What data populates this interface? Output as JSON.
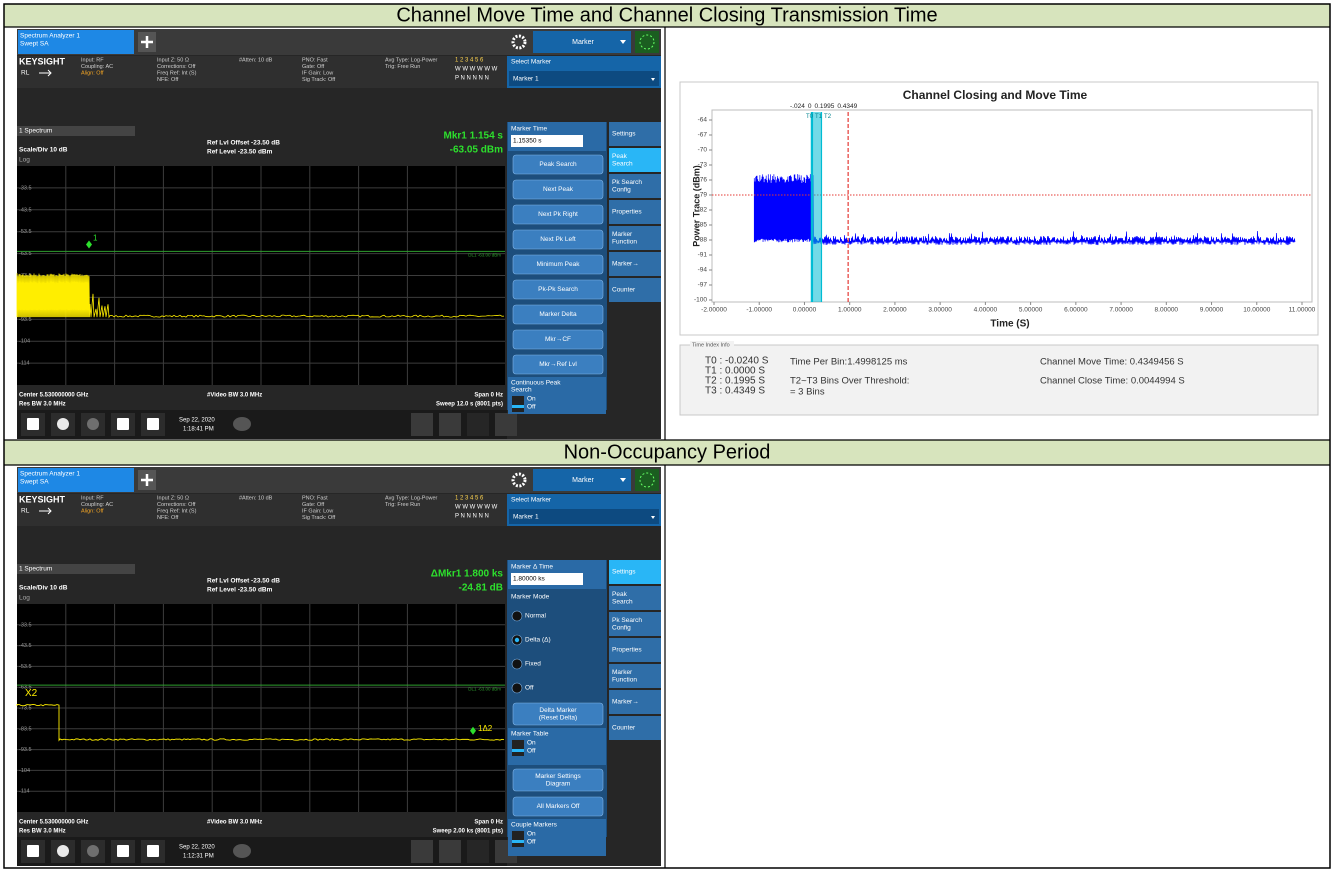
{
  "rows": [
    {
      "header": "Channel Move Time and Channel Closing Transmission Time"
    },
    {
      "header": "Non-Occupancy Period"
    }
  ],
  "screens": [
    {
      "tab": [
        "Spectrum Analyzer 1",
        "Swept SA"
      ],
      "mode": "Marker",
      "brand": "KEYSIGHT",
      "rl": "RL",
      "info": [
        [
          "Input: RF",
          "Coupling: AC",
          "Align: Off"
        ],
        [
          "Input Z: 50 Ω",
          "Corrections: Off",
          "Freq Ref: Int (S)",
          "NFE: Off"
        ],
        [
          "#Atten: 10 dB"
        ],
        [
          "PNO: Fast",
          "Gate: Off",
          "IF Gain: Low",
          "Sig Track: Off"
        ],
        [
          "Avg Type: Log-Power",
          "Trig: Free Run"
        ]
      ],
      "traces": [
        "1 2 3 4 5 6",
        "W W W W W W",
        "P N N N N N"
      ],
      "select_marker": [
        "Select Marker",
        "Marker 1"
      ],
      "window": "1 Spectrum",
      "scale": "Scale/Div 10 dB",
      "log": "Log",
      "ref": [
        "Ref Lvl Offset -23.50 dB",
        "Ref Level -23.50 dBm"
      ],
      "readout": [
        "Mkr1 1.154 s",
        "-63.05 dBm"
      ],
      "y_labels": [
        "-33.5",
        "-43.5",
        "-53.5",
        "-63.5",
        "-73.5",
        "-83.5",
        "-93.5",
        "-104",
        "-114"
      ],
      "dl": "DL1 -63.00 dBm",
      "marker_tags": [
        "1"
      ],
      "bottom": [
        "Center 5.530000000 GHz",
        "Res BW 3.0 MHz",
        "#Video BW 3.0 MHz",
        "Span 0 Hz",
        "Sweep 12.0 s (8001 pts)"
      ],
      "clock": [
        "Sep 22, 2020",
        "1:18:41 PM"
      ],
      "panel": [
        {
          "title": "Marker Time",
          "value": "1.15350 s"
        },
        {
          "button": [
            "Peak Search"
          ]
        },
        {
          "button": [
            "Next Peak"
          ]
        },
        {
          "button": [
            "Next Pk Right"
          ]
        },
        {
          "button": [
            "Next Pk Left"
          ]
        },
        {
          "button": [
            "Minimum Peak"
          ]
        },
        {
          "button": [
            "Pk-Pk Search"
          ]
        },
        {
          "button": [
            "Marker Delta"
          ]
        },
        {
          "button": [
            "Mkr→CF"
          ]
        },
        {
          "button": [
            "Mkr→Ref Lvl"
          ]
        },
        {
          "toggle_title": [
            "Continuous Peak",
            "Search"
          ],
          "toggle": [
            "On",
            "Off"
          ]
        }
      ],
      "tabs": [
        [
          "Settings"
        ],
        [
          "Peak",
          "Search"
        ],
        [
          "Pk Search",
          "Config"
        ],
        [
          "Properties"
        ],
        [
          "Marker",
          "Function"
        ],
        [
          "Marker→"
        ],
        [
          "Counter"
        ]
      ],
      "active_tab": 1
    },
    {
      "tab": [
        "Spectrum Analyzer 1",
        "Swept SA"
      ],
      "mode": "Marker",
      "brand": "KEYSIGHT",
      "rl": "RL",
      "info": [
        [
          "Input: RF",
          "Coupling: AC",
          "Align: Off"
        ],
        [
          "Input Z: 50 Ω",
          "Corrections: Off",
          "Freq Ref: Int (S)",
          "NFE: Off"
        ],
        [
          "#Atten: 10 dB"
        ],
        [
          "PNO: Fast",
          "Gate: Off",
          "IF Gain: Low",
          "Sig Track: Off"
        ],
        [
          "Avg Type: Log-Power",
          "Trig: Free Run"
        ]
      ],
      "traces": [
        "1 2 3 4 5 6",
        "W W W W W W",
        "P N N N N N"
      ],
      "select_marker": [
        "Select Marker",
        "Marker 1"
      ],
      "window": "1 Spectrum",
      "scale": "Scale/Div 10 dB",
      "log": "Log",
      "ref": [
        "Ref Lvl Offset -23.50 dB",
        "Ref Level -23.50 dBm"
      ],
      "readout": [
        "ΔMkr1 1.800 ks",
        "-24.81 dB"
      ],
      "y_labels": [
        "-33.5",
        "-43.5",
        "-53.5",
        "-63.5",
        "-73.5",
        "-83.5",
        "-93.5",
        "-104",
        "-114"
      ],
      "dl": "DL1 -63.00 dBm",
      "marker_tags": [
        "X2",
        "1Δ2"
      ],
      "bottom": [
        "Center 5.530000000 GHz",
        "Res BW 3.0 MHz",
        "#Video BW 3.0 MHz",
        "Span 0 Hz",
        "Sweep 2.00 ks (8001 pts)"
      ],
      "clock": [
        "Sep 22, 2020",
        "1:12:31 PM"
      ],
      "panel": [
        {
          "title": "Marker Δ Time",
          "value": "1.80000 ks"
        },
        {
          "header": "Marker Mode"
        },
        {
          "radio": "Normal",
          "selected": false
        },
        {
          "radio": "Delta (Δ)",
          "selected": true
        },
        {
          "radio": "Fixed",
          "selected": false
        },
        {
          "radio": "Off",
          "selected": false
        },
        {
          "button": [
            "Delta Marker",
            "(Reset Delta)"
          ]
        },
        {
          "toggle_title": [
            "Marker Table"
          ],
          "toggle": [
            "On",
            "Off"
          ]
        },
        {
          "button": [
            "Marker Settings",
            "Diagram"
          ]
        },
        {
          "button": [
            "All Markers Off"
          ]
        },
        {
          "toggle_title": [
            "Couple Markers"
          ],
          "toggle": [
            "On",
            "Off"
          ]
        }
      ],
      "tabs": [
        [
          "Settings"
        ],
        [
          "Peak",
          "Search"
        ],
        [
          "Pk Search",
          "Config"
        ],
        [
          "Properties"
        ],
        [
          "Marker",
          "Function"
        ],
        [
          "Marker→"
        ],
        [
          "Counter"
        ]
      ],
      "active_tab": 0
    }
  ],
  "closing_chart": {
    "type": "line",
    "title": "Channel Closing and Move Time",
    "x_label": "Time (S)",
    "y_label": "Power Trace (dBm)",
    "xlim": [
      -2,
      11
    ],
    "xticks": [
      {
        "value": -2,
        "label": "-2.00000"
      },
      {
        "value": -1,
        "label": "-1.00000"
      },
      {
        "value": 0,
        "label": "0.00000"
      },
      {
        "value": 1,
        "label": "1.00000"
      },
      {
        "value": 2,
        "label": "2.00000"
      },
      {
        "value": 3,
        "label": "3.00000"
      },
      {
        "value": 4,
        "label": "4.00000"
      },
      {
        "value": 5,
        "label": "5.00000"
      },
      {
        "value": 6,
        "label": "6.00000"
      },
      {
        "value": 7,
        "label": "7.00000"
      },
      {
        "value": 8,
        "label": "8.00000"
      },
      {
        "value": 9,
        "label": "9.00000"
      },
      {
        "value": 10,
        "label": "10.00000"
      },
      {
        "value": 11,
        "label": "11.00000"
      }
    ],
    "ylim": [
      -100,
      -64
    ],
    "yticks": [
      -64,
      -67,
      -70,
      -73,
      -76,
      -79,
      -82,
      -85,
      -88,
      -91,
      -94,
      -97,
      -100
    ],
    "threshold": -79,
    "threshold_color": "#e53935",
    "trace_color": "#0000ff",
    "markers": [
      {
        "name": "T0",
        "value": -0.024,
        "label": "-.024",
        "info": "T0 : -0.0240 S",
        "color": "#00bcd4"
      },
      {
        "name": "T1",
        "value": 0,
        "label": "0",
        "info": "T1 : 0.0000 S",
        "color": "#00bcd4"
      },
      {
        "name": "T2",
        "value": 0.1995,
        "label": "0.1995",
        "info": "T2 : 0.1995 S",
        "color": "#00bcd4"
      },
      {
        "name": "T3",
        "value": 0.4349,
        "label": "0.4349",
        "info": "T3 : 0.4349 S",
        "color": "#e53935"
      }
    ],
    "info_title": "Time Index Info",
    "info": [
      "Time Per Bin:1.4998125 ms",
      "T2~T3 Bins Over Threshold:",
      "= 3 Bins"
    ],
    "results": [
      "Channel Move Time: 0.4349456 S",
      "Channel Close Time: 0.0044994 S"
    ]
  }
}
